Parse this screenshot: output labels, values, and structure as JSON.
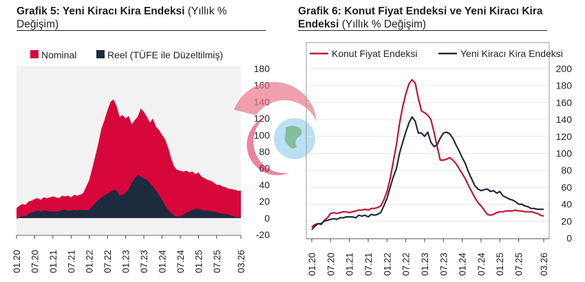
{
  "chart_data": [
    {
      "type": "area",
      "title": "Grafik 5: Yeni Kiracı Kira Endeksi",
      "subtitle": "(Yıllık % Değişim)",
      "x_ticks": [
        "01.20",
        "07.20",
        "01.21",
        "07.21",
        "01.22",
        "07.22",
        "01.23",
        "07.23",
        "01.24",
        "07.24",
        "01.25",
        "07.25",
        "03.26"
      ],
      "y_ticks": [
        "180",
        "160",
        "140",
        "120",
        "100",
        "80",
        "60",
        "40",
        "20",
        "0",
        "-20"
      ],
      "ylim": [
        -20,
        180
      ],
      "y_axis_side": "right",
      "legend": "top",
      "series": [
        {
          "name": "Nominal",
          "color": "#d7063b",
          "months": [
            "01.20",
            "02.20",
            "03.20",
            "04.20",
            "05.20",
            "06.20",
            "07.20",
            "08.20",
            "09.20",
            "10.20",
            "11.20",
            "12.20",
            "01.21",
            "02.21",
            "03.21",
            "04.21",
            "05.21",
            "06.21",
            "07.21",
            "08.21",
            "09.21",
            "10.21",
            "11.21",
            "12.21",
            "01.22",
            "02.22",
            "03.22",
            "04.22",
            "05.22",
            "06.22",
            "07.22",
            "08.22",
            "09.22",
            "10.22",
            "11.22",
            "12.22",
            "01.23",
            "02.23",
            "03.23",
            "04.23",
            "05.23",
            "06.23",
            "07.23",
            "08.23",
            "09.23",
            "10.23",
            "11.23",
            "12.23",
            "01.24",
            "02.24",
            "03.24",
            "04.24",
            "05.24",
            "06.24",
            "07.24",
            "08.24",
            "09.24",
            "10.24",
            "11.24",
            "12.24",
            "01.25",
            "02.25",
            "03.25",
            "04.25",
            "05.25",
            "06.25",
            "07.25",
            "08.25",
            "09.25",
            "10.25",
            "11.25",
            "12.25",
            "01.26",
            "02.26",
            "03.26"
          ],
          "values": [
            12,
            15,
            17,
            16,
            20,
            21,
            23,
            24,
            22,
            25,
            24,
            25,
            26,
            25,
            24,
            27,
            26,
            27,
            25,
            28,
            27,
            28,
            30,
            38,
            46,
            60,
            75,
            90,
            108,
            118,
            130,
            140,
            143,
            135,
            122,
            124,
            120,
            123,
            113,
            118,
            122,
            132,
            128,
            122,
            115,
            120,
            110,
            106,
            100,
            95,
            85,
            72,
            62,
            58,
            57,
            56,
            57,
            55,
            56,
            53,
            55,
            50,
            48,
            46,
            45,
            43,
            40,
            40,
            38,
            37,
            35,
            35,
            34,
            33,
            33
          ]
        },
        {
          "name": "Reel (TÜFE ile Düzeltilmiş)",
          "color": "#1d2b3e",
          "values": [
            -1,
            1,
            3,
            2,
            5,
            7,
            8,
            9,
            8,
            9,
            9,
            8,
            8,
            8,
            8,
            10,
            10,
            9,
            9,
            10,
            9,
            10,
            10,
            9,
            10,
            14,
            18,
            22,
            25,
            27,
            29,
            32,
            34,
            33,
            27,
            28,
            30,
            35,
            42,
            48,
            52,
            50,
            48,
            46,
            42,
            38,
            33,
            28,
            22,
            15,
            10,
            6,
            3,
            2,
            2,
            4,
            6,
            8,
            10,
            11,
            11,
            10,
            9,
            9,
            8,
            8,
            7,
            6,
            5,
            5,
            4,
            3,
            2,
            1,
            1
          ]
        }
      ]
    },
    {
      "type": "line",
      "title": "Grafik 6: Konut Fiyat Endeksi ve Yeni Kiracı Kira Endeksi",
      "subtitle": "(Yıllık % Değişim)",
      "x_ticks": [
        "01.20",
        "07.20",
        "01.21",
        "07.21",
        "01.22",
        "07.22",
        "01.23",
        "07.23",
        "01.24",
        "07.24",
        "01.25",
        "07.25",
        "03.26"
      ],
      "y_ticks": [
        "200",
        "180",
        "160",
        "140",
        "120",
        "100",
        "80",
        "60",
        "40",
        "20",
        "0"
      ],
      "ylim": [
        0,
        200
      ],
      "y_axis_side": "right",
      "legend": "top",
      "series": [
        {
          "name": "Konut Fiyat Endeksi",
          "color": "#c8102e",
          "values": [
            13,
            16,
            17,
            16,
            21,
            24,
            29,
            30,
            29,
            30,
            31,
            31,
            30,
            31,
            32,
            33,
            33,
            34,
            33,
            35,
            35,
            36,
            38,
            45,
            55,
            70,
            90,
            110,
            135,
            155,
            170,
            182,
            187,
            183,
            165,
            150,
            148,
            145,
            140,
            125,
            108,
            92,
            92,
            93,
            95,
            92,
            88,
            82,
            76,
            70,
            62,
            55,
            48,
            42,
            38,
            33,
            28,
            27,
            28,
            30,
            31,
            31,
            32,
            32,
            32,
            33,
            32,
            32,
            31,
            31,
            31,
            30,
            29,
            27,
            26
          ]
        },
        {
          "name": "Yeni Kiracı Kira Endeksi",
          "color": "#1d2b3e",
          "values": [
            10,
            14,
            17,
            17,
            20,
            21,
            22,
            23,
            22,
            24,
            24,
            25,
            25,
            25,
            24,
            27,
            26,
            27,
            25,
            28,
            27,
            28,
            30,
            38,
            47,
            60,
            72,
            82,
            100,
            113,
            125,
            136,
            143,
            138,
            124,
            124,
            120,
            125,
            113,
            108,
            110,
            118,
            124,
            125,
            123,
            118,
            110,
            103,
            95,
            88,
            78,
            70,
            62,
            58,
            56,
            57,
            58,
            55,
            56,
            53,
            55,
            50,
            48,
            46,
            45,
            43,
            40,
            40,
            38,
            37,
            35,
            35,
            34,
            34,
            34
          ]
        }
      ]
    }
  ]
}
